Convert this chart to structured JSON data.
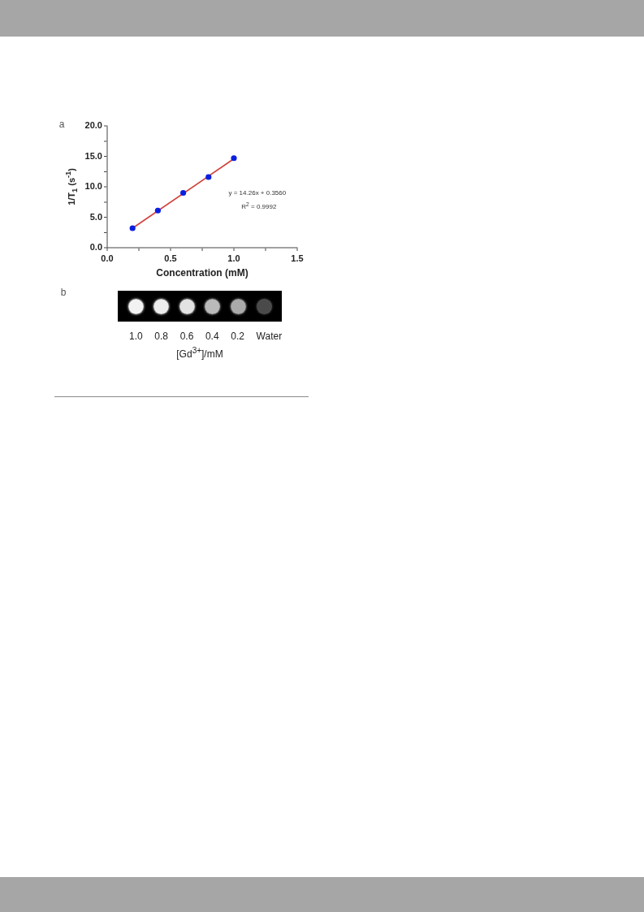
{
  "chart_data": [
    {
      "type": "scatter",
      "annotations": [
        "a",
        "y = 14.26x + 0.3560",
        "R$^{2}$ = 0.9992"
      ],
      "xlabel": "Concentration (mM)",
      "ylabel": "1/T$_{1}$ (s$^{-1}$)",
      "x": [
        0.2,
        0.4,
        0.6,
        0.8,
        1.0
      ],
      "series": [
        {
          "type": "scatter",
          "color": "#0b1fe0",
          "marker": "circle",
          "values": [
            3.2,
            6.1,
            9.0,
            11.6,
            14.7
          ]
        },
        {
          "type": "line",
          "color": "#d1433d",
          "marker": "none",
          "line_style": "solid",
          "x": [
            0.2,
            1.0
          ],
          "values": [
            3.2,
            14.6
          ]
        }
      ],
      "xlim": [
        0,
        1.5
      ],
      "xticks": [
        {
          "value": 0,
          "label": "0.0"
        },
        {
          "value": 0.25,
          "label": null
        },
        {
          "value": 0.5,
          "label": "0.5"
        },
        {
          "value": 0.75,
          "label": null
        },
        {
          "value": 1,
          "label": "1.0"
        },
        {
          "value": 1.25,
          "label": null
        },
        {
          "value": 1.5,
          "label": "1.5"
        }
      ],
      "ylim": [
        0,
        20
      ],
      "yticks": [
        {
          "value": 0,
          "label": "0.0"
        },
        {
          "value": 2.5,
          "label": null
        },
        {
          "value": 5,
          "label": "5.0"
        },
        {
          "value": 7.5,
          "label": null
        },
        {
          "value": 10,
          "label": "10.0"
        },
        {
          "value": 12.5,
          "label": null
        },
        {
          "value": 15,
          "label": "15.0"
        },
        {
          "value": 17.5,
          "label": null
        },
        {
          "value": 20,
          "label": "20.0"
        }
      ],
      "grid": false,
      "legend": false
    },
    {
      "type": "other",
      "annotations": [
        "b",
        "1.0 0.8 0.6 0.4 0.2 Water",
        "[Gd$^{3+}$]/mM"
      ],
      "colors": [
        "#f2f2f2",
        "#ececec",
        "#e2e2e2",
        "#bababa",
        "#aaaaaa",
        "#4a4a4a"
      ]
    }
  ]
}
